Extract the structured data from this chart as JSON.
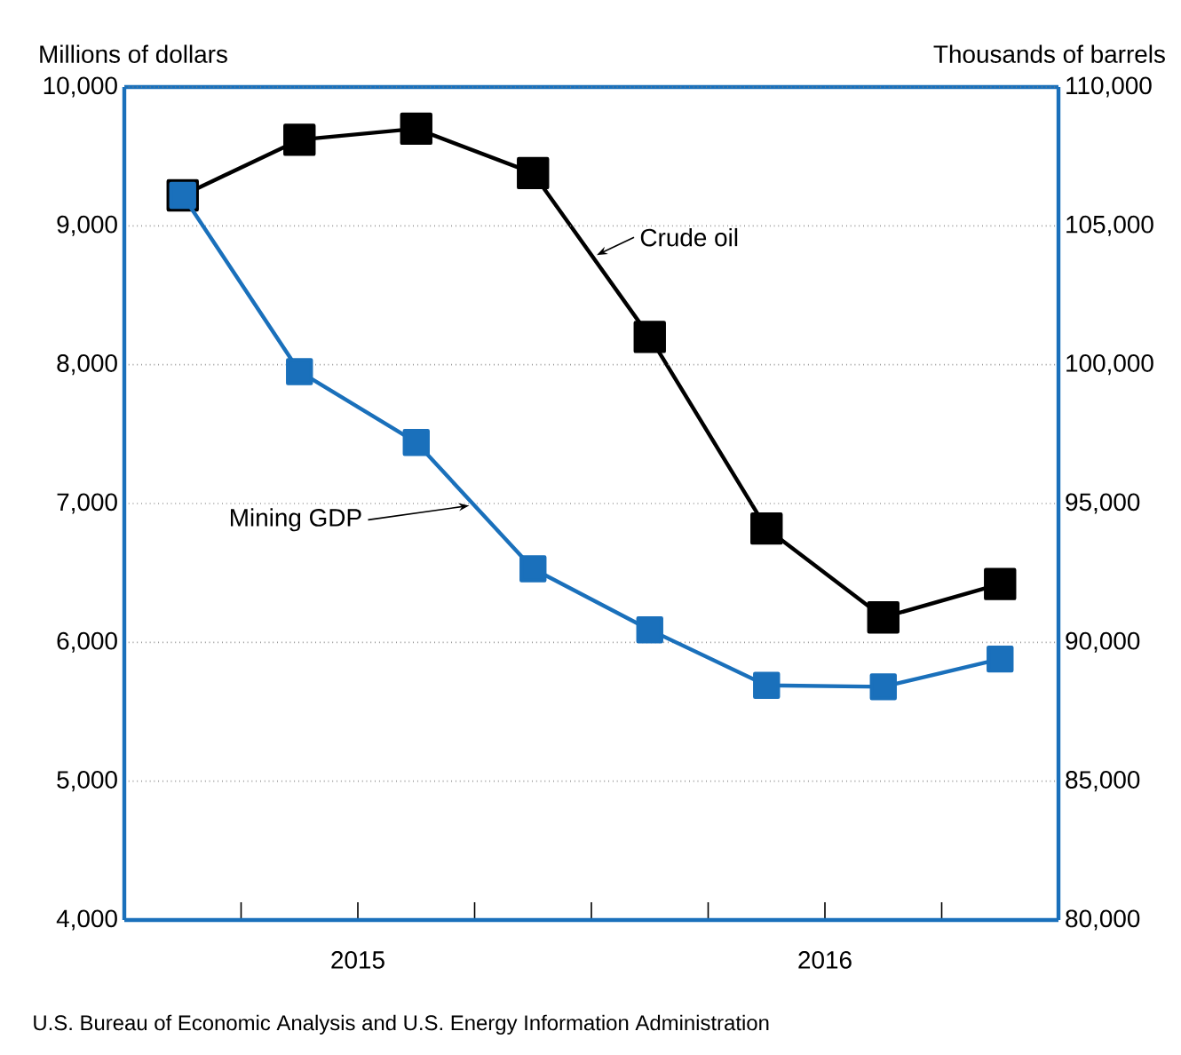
{
  "chart_data": {
    "type": "line",
    "ylabel": "Millions of dollars",
    "y2label": "Thousands of barrels",
    "x": [
      2015.125,
      2015.375,
      2015.625,
      2015.875,
      2016.125,
      2016.375,
      2016.625,
      2016.875
    ],
    "xlim": [
      2015,
      2017
    ],
    "xticks": [
      {
        "value": 2015.25,
        "label": null
      },
      {
        "value": 2015.5,
        "label": "2015"
      },
      {
        "value": 2015.75,
        "label": null
      },
      {
        "value": 2016,
        "label": null
      },
      {
        "value": 2016.25,
        "label": null
      },
      {
        "value": 2016.5,
        "label": "2016"
      },
      {
        "value": 2016.75,
        "label": null
      }
    ],
    "ylim": [
      4000,
      10000
    ],
    "yticks": [
      {
        "value": 4000,
        "label": "4,000"
      },
      {
        "value": 5000,
        "label": "5,000"
      },
      {
        "value": 6000,
        "label": "6,000"
      },
      {
        "value": 7000,
        "label": "7,000"
      },
      {
        "value": 8000,
        "label": "8,000"
      },
      {
        "value": 9000,
        "label": "9,000"
      },
      {
        "value": 10000,
        "label": "10,000"
      }
    ],
    "y2lim": [
      80000,
      110000
    ],
    "y2ticks": [
      {
        "value": 80000,
        "label": "80,000"
      },
      {
        "value": 85000,
        "label": "85,000"
      },
      {
        "value": 90000,
        "label": "90,000"
      },
      {
        "value": 95000,
        "label": "95,000"
      },
      {
        "value": 100000,
        "label": "100,000"
      },
      {
        "value": 105000,
        "label": "105,000"
      },
      {
        "value": 110000,
        "label": "110,000"
      }
    ],
    "grid": "y",
    "marker": "square",
    "line_style": "solid",
    "series": [
      {
        "name": "Mining GDP",
        "color": "#1a70bb",
        "values": [
          9220,
          7950,
          7440,
          6530,
          6090,
          5690,
          5680,
          5880
        ]
      },
      {
        "name": "Crude oil",
        "color": "#000000",
        "axis": "y2",
        "values": [
          106100,
          108100,
          108500,
          106900,
          101000,
          94100,
          90900,
          92100
        ]
      }
    ],
    "annotations": [
      "U.S. Bureau of Economic Analysis and U.S. Energy Information Administration"
    ]
  }
}
